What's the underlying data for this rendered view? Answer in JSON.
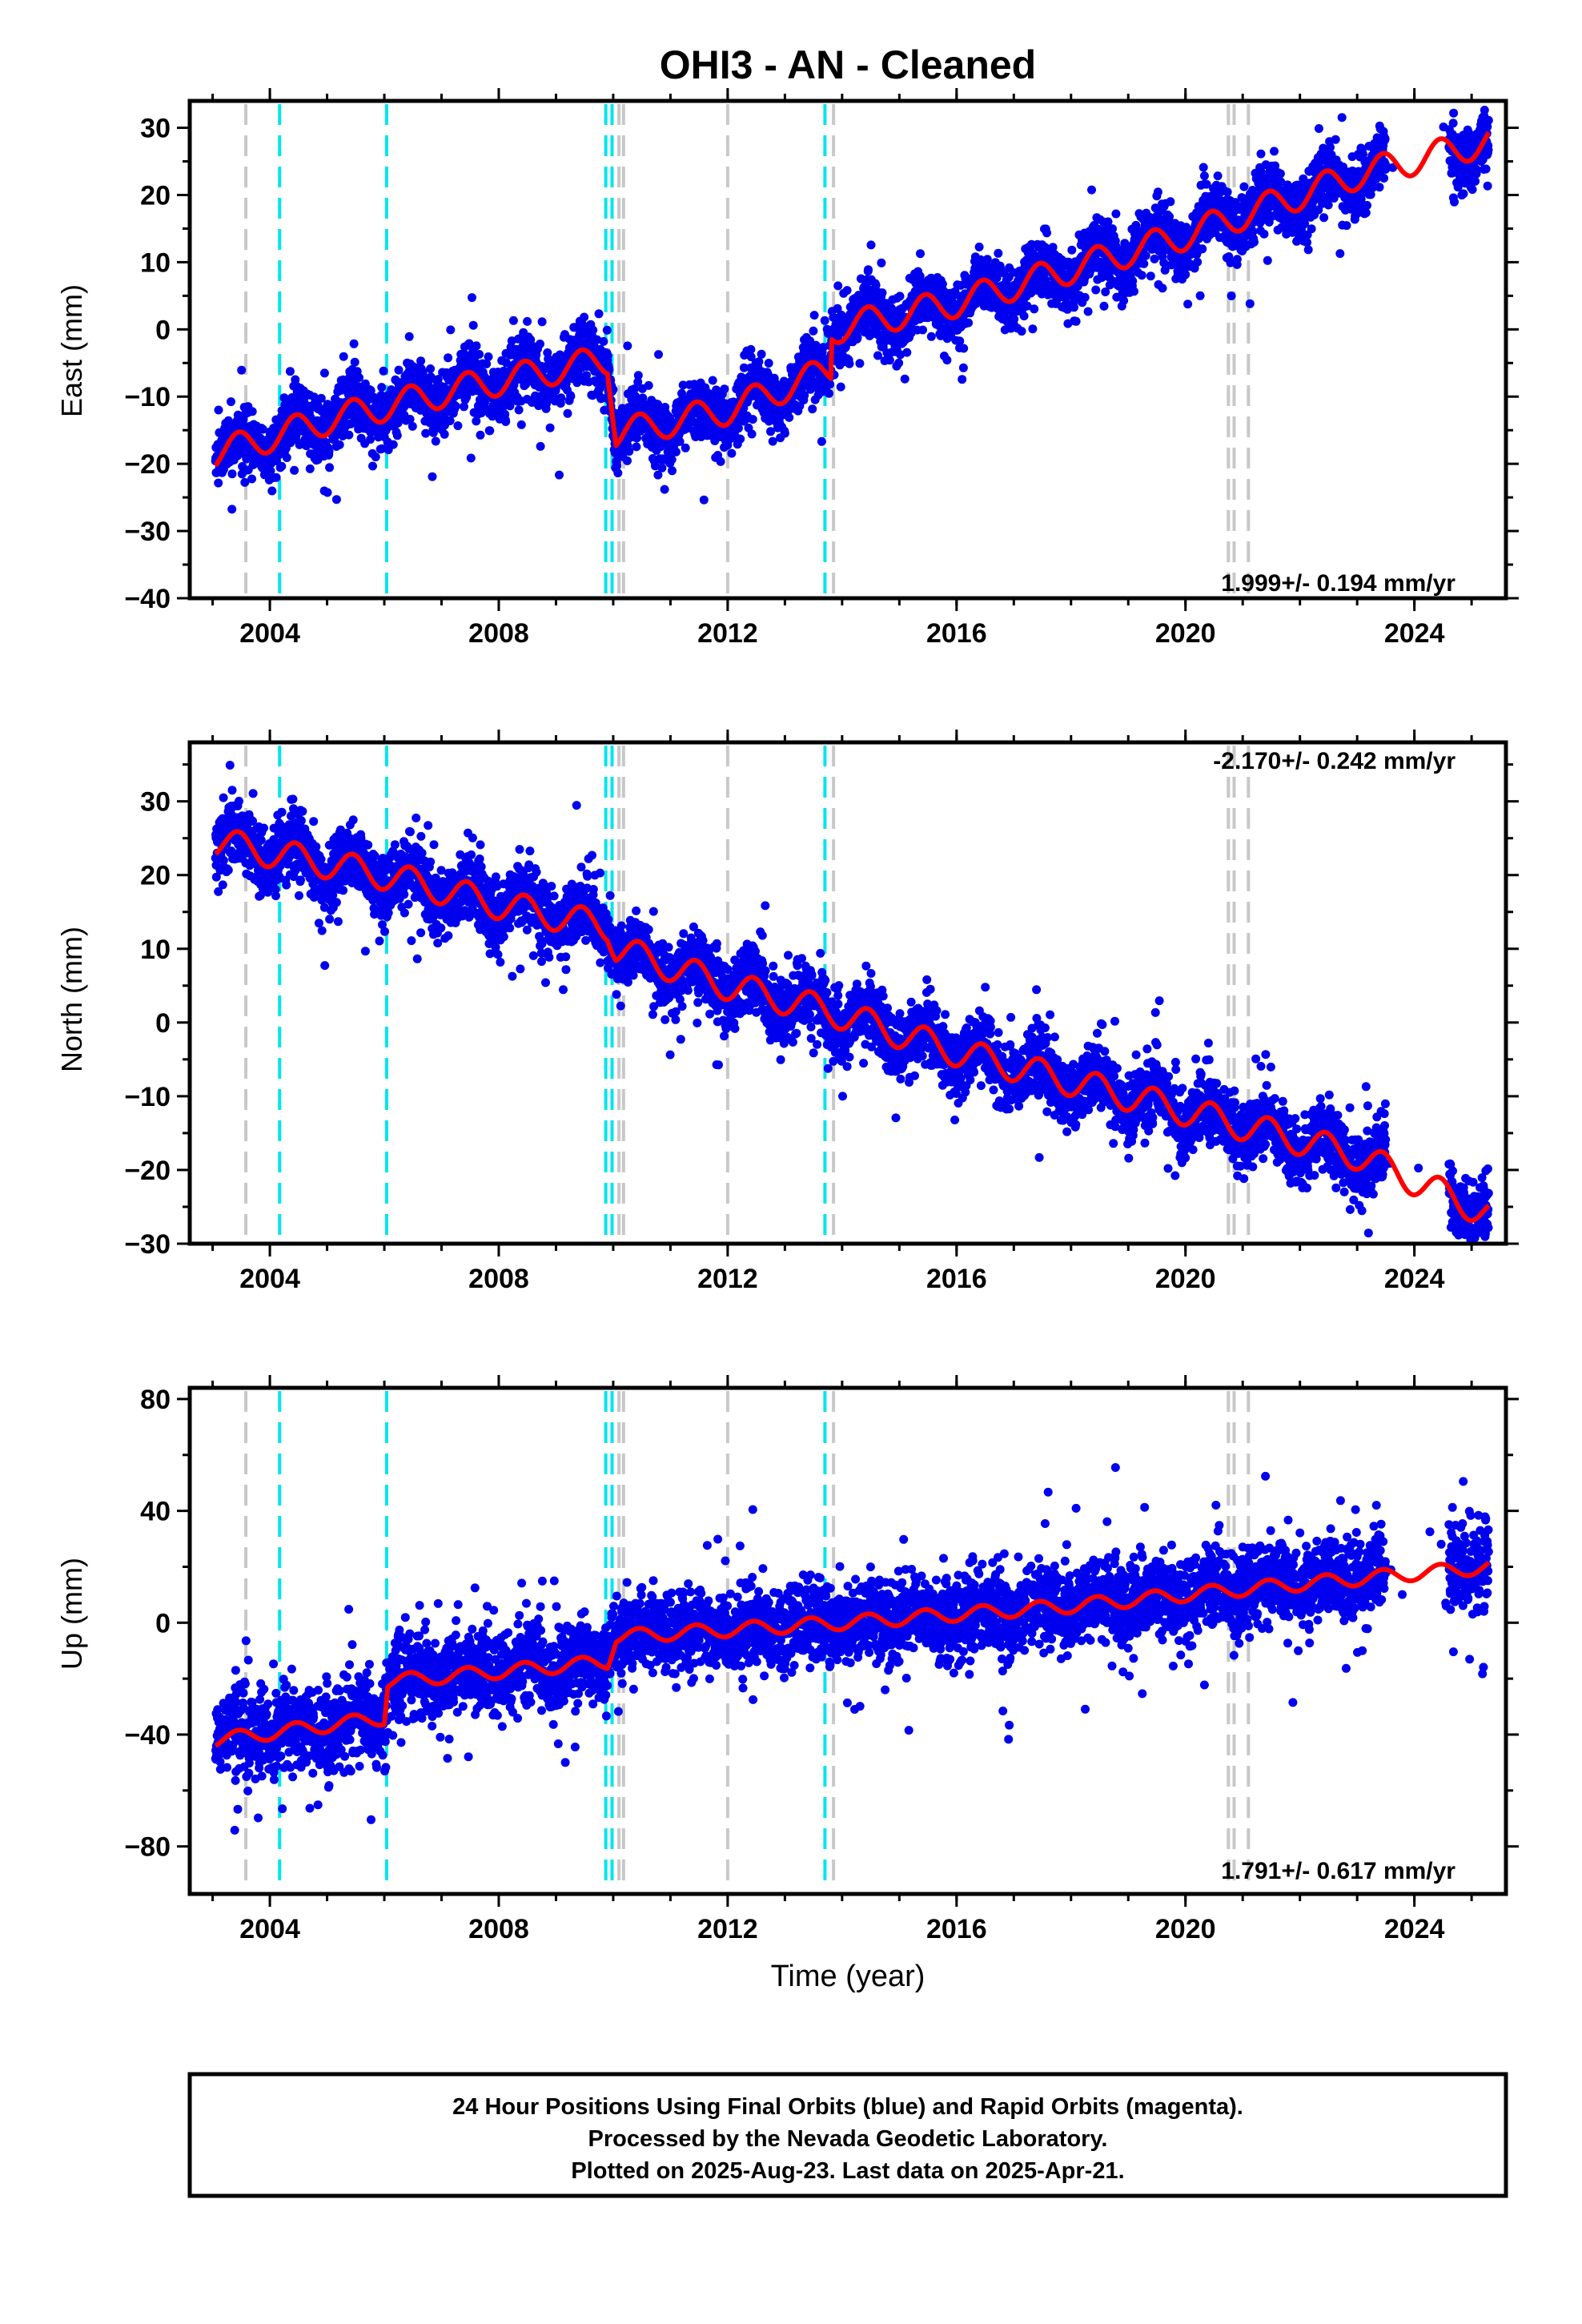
{
  "title": "OHI3  - AN - Cleaned",
  "xlabel": "Time (year)",
  "footer": {
    "line1": "24 Hour Positions Using Final Orbits (blue) and Rapid Orbits (magenta).",
    "line2": "Processed by the Nevada Geodetic Laboratory.",
    "line3": "Plotted on 2025-Aug-23. Last data on 2025-Apr-21."
  },
  "colors": {
    "final_orbits": "#0000ee",
    "model": "#ff0000",
    "equipment_change": "#00e5ee",
    "earthquake": "#c8c8c8"
  },
  "chart_data": [
    {
      "type": "scatter",
      "component": "East",
      "ylabel": "East (mm)",
      "xlim": [
        2002.6,
        2025.6
      ],
      "ylim": [
        -40,
        34
      ],
      "xticks": [
        2004,
        2008,
        2012,
        2016,
        2020,
        2024
      ],
      "yticks": [
        -40,
        -30,
        -20,
        -10,
        0,
        10,
        20,
        30
      ],
      "rate_label": "1.999+/- 0.194 mm/yr",
      "rate_position": "bottom-right",
      "trend": {
        "rate_mm_per_yr": 1.999,
        "annual_amplitude_mm": 2.2,
        "offsets": [
          {
            "year": 2009.98,
            "offset_mm": -10.5
          },
          {
            "year": 2013.8,
            "offset_mm": 5.2
          }
        ],
        "model_points": [
          [
            2003.05,
            -18.5
          ],
          [
            2005,
            -13.5
          ],
          [
            2007.5,
            -8.5
          ],
          [
            2009.9,
            -4.5
          ],
          [
            2010.05,
            -15.5
          ],
          [
            2012,
            -12
          ],
          [
            2013.8,
            -6
          ],
          [
            2013.82,
            0
          ],
          [
            2016,
            4
          ],
          [
            2020,
            14
          ],
          [
            2023,
            23
          ],
          [
            2025.3,
            28
          ]
        ]
      },
      "data_span": {
        "gap": [
          2023.5,
          2024.6
        ]
      },
      "steps": {
        "equipment_change": [
          2004.17,
          2006.04,
          2009.87,
          2009.98,
          2013.7
        ],
        "earthquake": [
          2003.58,
          2010.1,
          2010.18,
          2012.0,
          2013.85,
          2020.75,
          2020.85,
          2021.1
        ]
      }
    },
    {
      "type": "scatter",
      "component": "North",
      "ylabel": "North (mm)",
      "xlim": [
        2002.6,
        2025.6
      ],
      "ylim": [
        -30,
        38
      ],
      "xticks": [
        2004,
        2008,
        2012,
        2016,
        2020,
        2024
      ],
      "yticks": [
        -30,
        -20,
        -10,
        0,
        10,
        20,
        30
      ],
      "rate_label": "-2.170+/- 0.242 mm/yr",
      "rate_position": "top-right",
      "trend": {
        "rate_mm_per_yr": -2.17,
        "annual_amplitude_mm": 2.0,
        "offsets": [
          {
            "year": 2009.98,
            "offset_mm": -3.0
          },
          {
            "year": 2013.8,
            "offset_mm": 2.0
          }
        ],
        "model_points": [
          [
            2003.05,
            24.5
          ],
          [
            2006,
            20
          ],
          [
            2008,
            16
          ],
          [
            2009.9,
            13
          ],
          [
            2010.05,
            10
          ],
          [
            2012,
            5
          ],
          [
            2013.8,
            1.5
          ],
          [
            2016,
            -4
          ],
          [
            2020,
            -12
          ],
          [
            2023,
            -18
          ],
          [
            2025.3,
            -26
          ]
        ]
      },
      "data_span": {
        "gap": [
          2023.5,
          2024.6
        ]
      },
      "steps": {
        "equipment_change": [
          2004.17,
          2006.04,
          2009.87,
          2009.98,
          2013.7
        ],
        "earthquake": [
          2003.58,
          2010.1,
          2010.18,
          2012.0,
          2013.85,
          2020.75,
          2020.85,
          2021.1
        ]
      }
    },
    {
      "type": "scatter",
      "component": "Up",
      "ylabel": "Up (mm)",
      "xlim": [
        2002.6,
        2025.6
      ],
      "ylim": [
        -97,
        84
      ],
      "xticks": [
        2004,
        2008,
        2012,
        2016,
        2020,
        2024
      ],
      "yticks": [
        -80,
        -40,
        0,
        40,
        80
      ],
      "rate_label": "1.791+/- 0.617 mm/yr",
      "rate_position": "bottom-right",
      "trend": {
        "rate_mm_per_yr": 1.791,
        "annual_amplitude_mm": 2.5,
        "offsets": [
          {
            "year": 2006.04,
            "offset_mm": 13
          },
          {
            "year": 2009.98,
            "offset_mm": 9
          }
        ],
        "model_points": [
          [
            2003.05,
            -42
          ],
          [
            2006,
            -34
          ],
          [
            2006.06,
            -21
          ],
          [
            2009.9,
            -14
          ],
          [
            2010.05,
            -5
          ],
          [
            2014,
            0
          ],
          [
            2018,
            6
          ],
          [
            2021,
            12
          ],
          [
            2025.3,
            20
          ]
        ]
      },
      "data_span": {
        "gap": [
          2023.5,
          2024.6
        ]
      },
      "steps": {
        "equipment_change": [
          2004.17,
          2006.04,
          2009.87,
          2009.98,
          2013.7
        ],
        "earthquake": [
          2003.58,
          2010.1,
          2010.18,
          2012.0,
          2013.85,
          2020.75,
          2020.85,
          2021.1
        ]
      }
    }
  ]
}
